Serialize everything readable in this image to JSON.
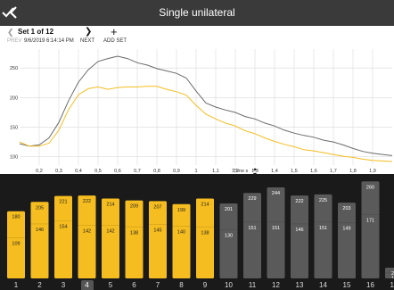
{
  "header": {
    "title": "Single unilateral"
  },
  "nav": {
    "set_label": "Set 1 of 12",
    "timestamp": "9/6/2019 6:14:14 PM",
    "prev_label": "PREV",
    "next_label": "NEXT",
    "add_label": "ADD SET",
    "time_axis_label": "Time s"
  },
  "chart_data": {
    "type": "line",
    "y_ticks": [
      "250",
      "200",
      "150",
      "100"
    ],
    "x_ticks": [
      "0,2",
      "0,3",
      "0,4",
      "0,5",
      "0,6",
      "0,7",
      "0,8",
      "0,9",
      "1",
      "1,1",
      "1,2",
      "1,3",
      "1,4",
      "1,5",
      "1,6",
      "1,7",
      "1,8",
      "1,9"
    ],
    "xlim": [
      0.1,
      2.0
    ],
    "ylim": [
      86,
      282
    ],
    "grid": true,
    "series": [
      {
        "color": "#6b6b6b",
        "x": [
          0.1,
          0.15,
          0.2,
          0.25,
          0.3,
          0.35,
          0.4,
          0.45,
          0.5,
          0.55,
          0.6,
          0.65,
          0.7,
          0.75,
          0.8,
          0.85,
          0.9,
          0.95,
          1.0,
          1.05,
          1.1,
          1.15,
          1.2,
          1.25,
          1.3,
          1.35,
          1.4,
          1.45,
          1.5,
          1.55,
          1.6,
          1.65,
          1.7,
          1.75,
          1.8,
          1.85,
          1.9,
          1.95,
          2.0
        ],
        "y": [
          122,
          118,
          120,
          132,
          158,
          195,
          226,
          247,
          261,
          266,
          270,
          266,
          259,
          255,
          249,
          245,
          241,
          233,
          211,
          191,
          184,
          179,
          175,
          168,
          164,
          157,
          152,
          145,
          140,
          136,
          133,
          128,
          125,
          120,
          114,
          109,
          106,
          104,
          102
        ]
      },
      {
        "color": "#f5bd1f",
        "x": [
          0.1,
          0.15,
          0.2,
          0.25,
          0.3,
          0.35,
          0.4,
          0.45,
          0.5,
          0.55,
          0.6,
          0.65,
          0.7,
          0.75,
          0.8,
          0.85,
          0.9,
          0.95,
          1.0,
          1.05,
          1.1,
          1.15,
          1.2,
          1.25,
          1.3,
          1.35,
          1.4,
          1.45,
          1.5,
          1.55,
          1.6,
          1.65,
          1.7,
          1.75,
          1.8,
          1.85,
          1.9,
          1.95,
          2.0
        ],
        "y": [
          125,
          118,
          118,
          123,
          145,
          180,
          205,
          215,
          218,
          214,
          217,
          218,
          218,
          219,
          219,
          214,
          210,
          204,
          187,
          172,
          164,
          157,
          152,
          144,
          139,
          132,
          126,
          121,
          117,
          112,
          110,
          107,
          104,
          101,
          99,
          96,
          94,
          93,
          92
        ]
      }
    ]
  },
  "bars": {
    "numbers": [
      "1",
      "2",
      "3",
      "4",
      "5",
      "6",
      "7",
      "8",
      "9",
      "10",
      "11",
      "12",
      "13",
      "14",
      "15",
      "16",
      "17"
    ],
    "selected_index": 3,
    "items": [
      {
        "color": "#f5bd1f",
        "top": 180,
        "bottom": 109
      },
      {
        "color": "#f5bd1f",
        "top": 205,
        "bottom": 146
      },
      {
        "color": "#f5bd1f",
        "top": 221,
        "bottom": 154
      },
      {
        "color": "#f5bd1f",
        "top": 222,
        "bottom": 142
      },
      {
        "color": "#f5bd1f",
        "top": 214,
        "bottom": 142
      },
      {
        "color": "#f5bd1f",
        "top": 209,
        "bottom": 138
      },
      {
        "color": "#f5bd1f",
        "top": 207,
        "bottom": 145
      },
      {
        "color": "#f5bd1f",
        "top": 199,
        "bottom": 140
      },
      {
        "color": "#f5bd1f",
        "top": 214,
        "bottom": 138
      },
      {
        "color": "#5a5a5a",
        "top": 201,
        "bottom": 130
      },
      {
        "color": "#5a5a5a",
        "top": 229,
        "bottom": 151
      },
      {
        "color": "#5a5a5a",
        "top": 244,
        "bottom": 151
      },
      {
        "color": "#5a5a5a",
        "top": 222,
        "bottom": 146
      },
      {
        "color": "#5a5a5a",
        "top": 225,
        "bottom": 151
      },
      {
        "color": "#5a5a5a",
        "top": 203,
        "bottom": 149
      },
      {
        "color": "#5a5a5a",
        "top": 260,
        "bottom": 171
      },
      {
        "color": "#5a5a5a",
        "top": 27,
        "bottom": 15
      }
    ]
  },
  "colors": {
    "accent": "#f5bd1f",
    "dark_bar": "#5a5a5a",
    "header_bg": "#3a3a3a"
  },
  "icons": {
    "back": "chevron-left-icon",
    "confirm": "checkmark-icon",
    "add": "plus-icon"
  }
}
